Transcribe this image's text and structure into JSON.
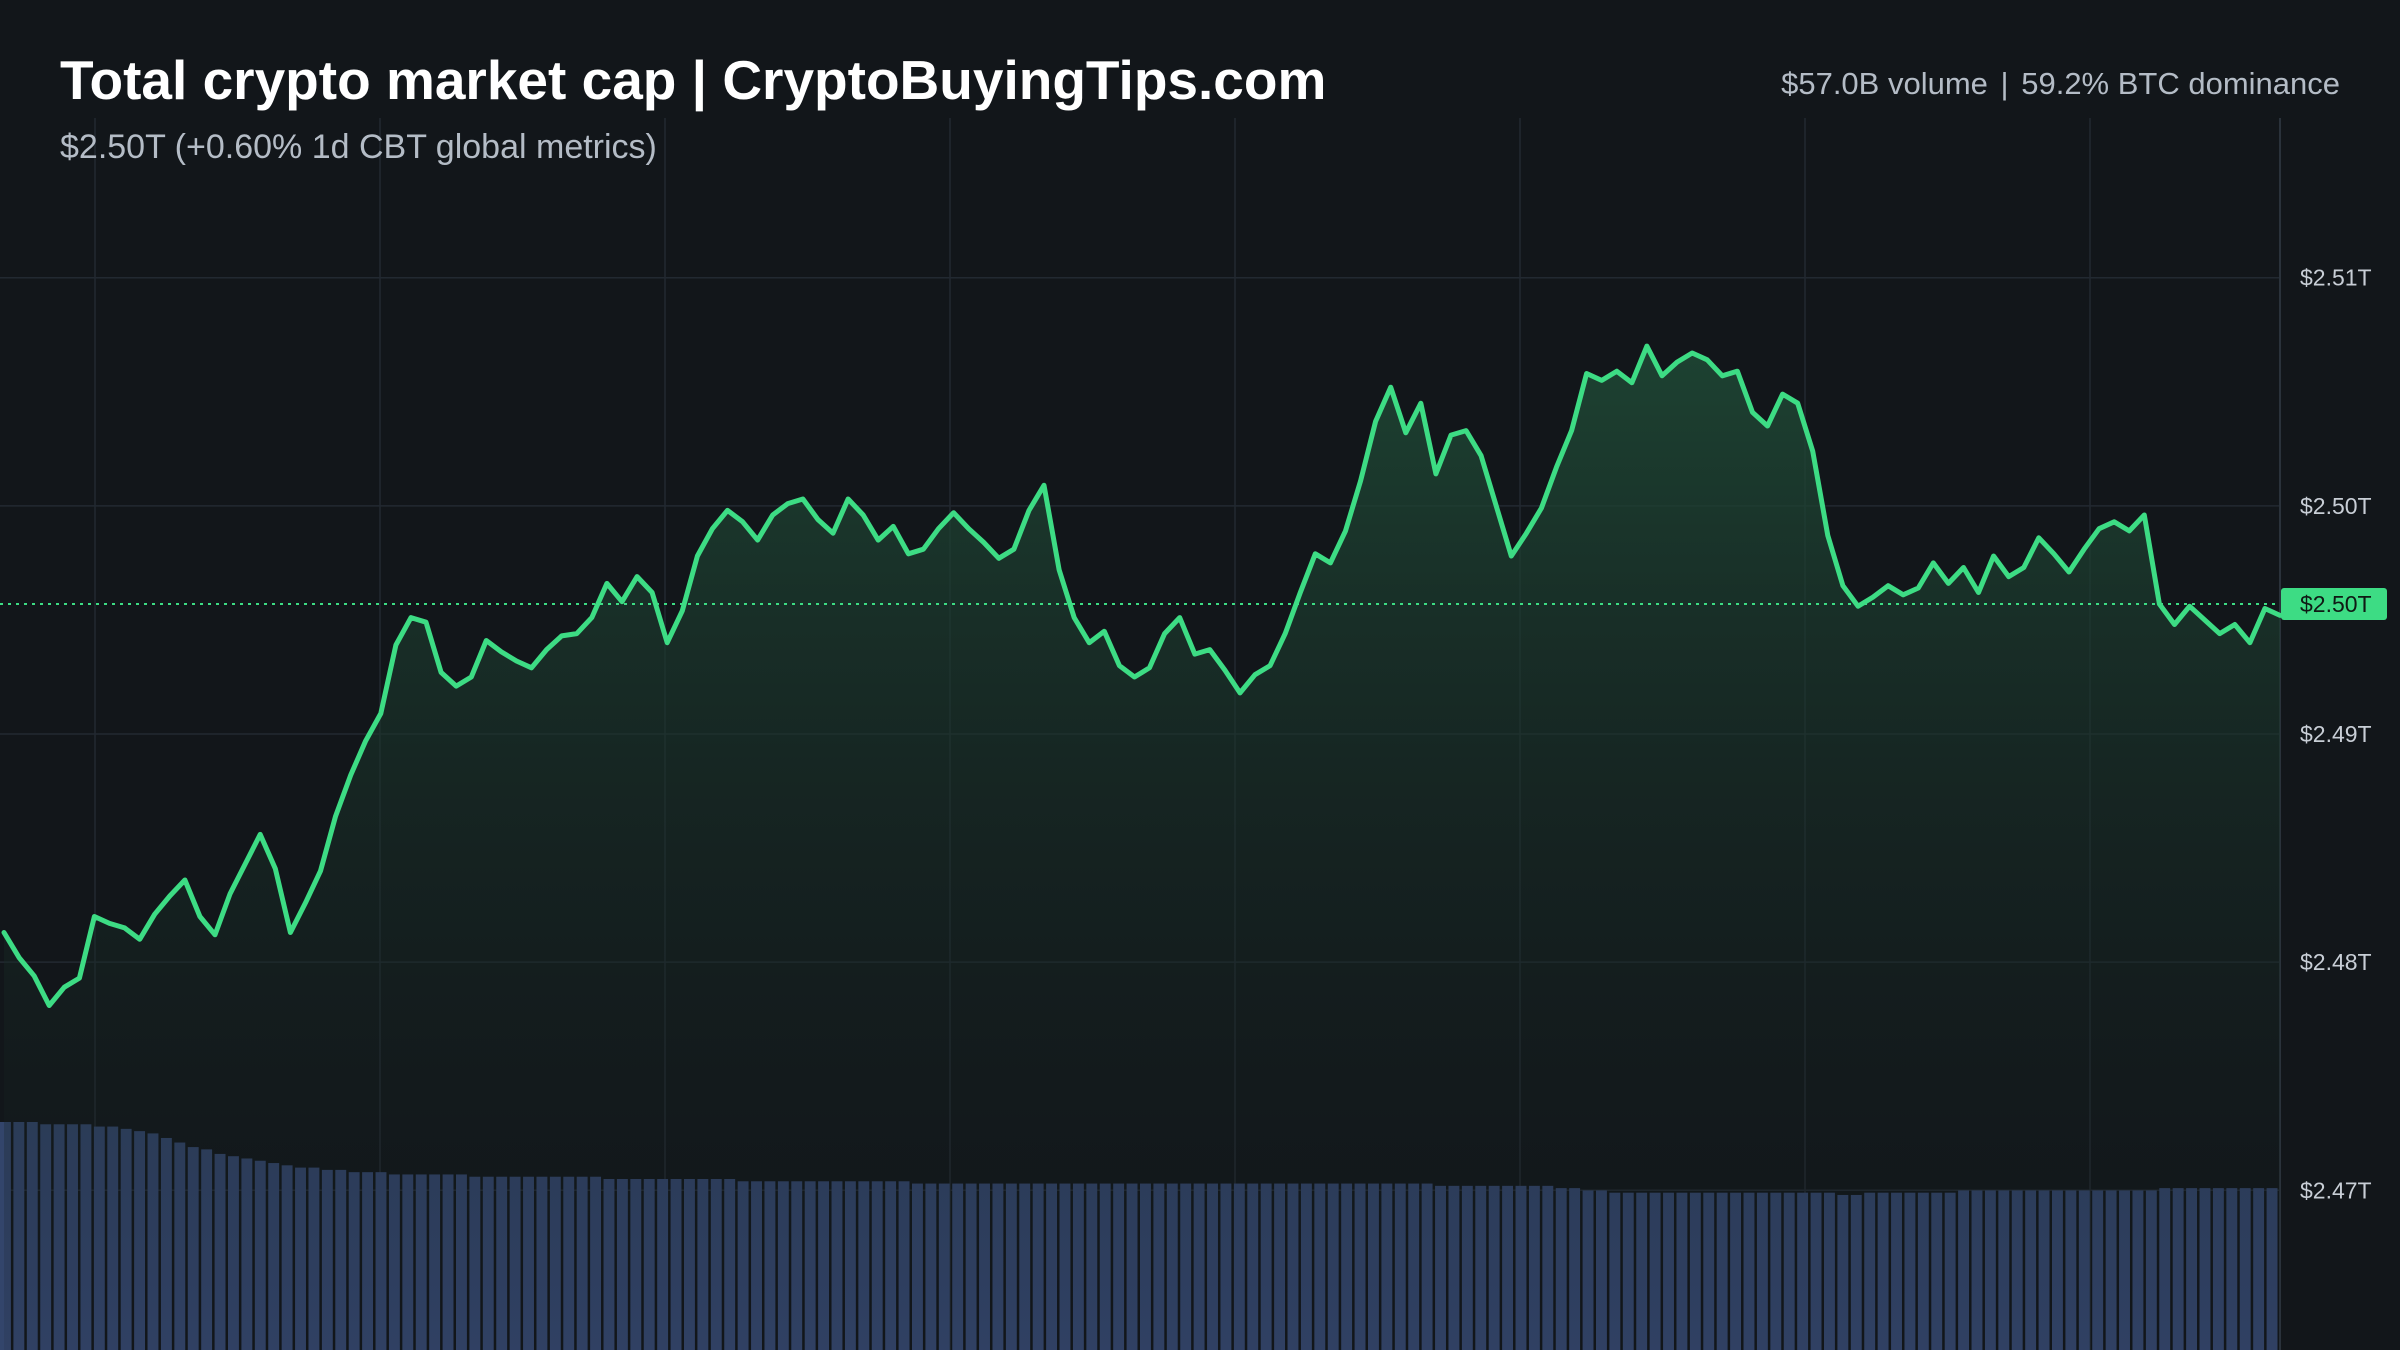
{
  "header": {
    "title": "Total crypto market cap | CryptoBuyingTips.com",
    "subtitle": "$2.50T (+0.60% 1d CBT global metrics)",
    "volume": "$57.0B volume",
    "separator": "|",
    "dominance": "59.2% BTC dominance"
  },
  "colors": {
    "background": "#12161a",
    "line": "#3ddc84",
    "area_top": "#1f4a36",
    "volume_bars": "#33456b",
    "grid": "#222931",
    "axis_text": "#c8ced6",
    "current_tag_bg": "#3ddc84",
    "current_tag_text": "#0f1a14"
  },
  "chart_data": {
    "type": "area",
    "title": "Total crypto market cap | CryptoBuyingTips.com",
    "y_unit": "USD trillions",
    "ylim": [
      2.463,
      2.517
    ],
    "y_ticks": [
      {
        "value": 2.51,
        "label": "$2.51T"
      },
      {
        "value": 2.5,
        "label": "$2.50T"
      },
      {
        "value": 2.49,
        "label": "$2.49T"
      },
      {
        "value": 2.48,
        "label": "$2.48T"
      },
      {
        "value": 2.47,
        "label": "$2.47T"
      }
    ],
    "current_value": {
      "value": 2.4957,
      "label": "$2.50T"
    },
    "grid": true,
    "series": [
      {
        "type": "line-area",
        "values": [
          2.4813,
          2.4802,
          2.4794,
          2.4781,
          2.4789,
          2.4793,
          2.482,
          2.4817,
          2.4815,
          2.481,
          2.4821,
          2.4829,
          2.4836,
          2.482,
          2.4812,
          2.483,
          2.4843,
          2.4856,
          2.4841,
          2.4813,
          2.4826,
          2.484,
          2.4864,
          2.4882,
          2.4897,
          2.4909,
          2.4939,
          2.4951,
          2.4949,
          2.4927,
          2.4921,
          2.4925,
          2.4941,
          2.4936,
          2.4932,
          2.4929,
          2.4937,
          2.4943,
          2.4944,
          2.4951,
          2.4966,
          2.4958,
          2.4969,
          2.4962,
          2.494,
          2.4954,
          2.4978,
          2.499,
          2.4998,
          2.4993,
          2.4985,
          2.4996,
          2.5001,
          2.5003,
          2.4994,
          2.4988,
          2.5003,
          2.4996,
          2.4985,
          2.4991,
          2.4979,
          2.4981,
          2.499,
          2.4997,
          2.499,
          2.4984,
          2.4977,
          2.4981,
          2.4998,
          2.5009,
          2.4972,
          2.4951,
          2.494,
          2.4945,
          2.493,
          2.4925,
          2.4929,
          2.4944,
          2.4951,
          2.4935,
          2.4937,
          2.4928,
          2.4918,
          2.4926,
          2.493,
          2.4944,
          2.4962,
          2.4979,
          2.4975,
          2.4989,
          2.5011,
          2.5037,
          2.5052,
          2.5032,
          2.5045,
          2.5014,
          2.5031,
          2.5033,
          2.5022,
          2.5,
          2.4978,
          2.4988,
          2.4999,
          2.5017,
          2.5033,
          2.5058,
          2.5055,
          2.5059,
          2.5054,
          2.507,
          2.5057,
          2.5063,
          2.5067,
          2.5064,
          2.5057,
          2.5059,
          2.5041,
          2.5035,
          2.5049,
          2.5045,
          2.5024,
          2.4987,
          2.4965,
          2.4956,
          2.496,
          2.4965,
          2.4961,
          2.4964,
          2.4975,
          2.4966,
          2.4973,
          2.4962,
          2.4978,
          2.4969,
          2.4973,
          2.4986,
          2.4979,
          2.4971,
          2.4981,
          2.499,
          2.4993,
          2.4989,
          2.4996,
          2.4957,
          2.4948,
          2.4956,
          2.495,
          2.4944,
          2.4948,
          2.494,
          2.4955,
          2.4952
        ]
      },
      {
        "type": "volume",
        "values": [
          100,
          100,
          100,
          99,
          99,
          99,
          99,
          98,
          98,
          97,
          96,
          95,
          93,
          91,
          89,
          88,
          86,
          85,
          84,
          83,
          82,
          81,
          80,
          80,
          79,
          79,
          78,
          78,
          78,
          77,
          77,
          77,
          77,
          77,
          77,
          76,
          76,
          76,
          76,
          76,
          76,
          76,
          76,
          76,
          76,
          75,
          75,
          75,
          75,
          75,
          75,
          75,
          75,
          75,
          75,
          74,
          74,
          74,
          74,
          74,
          74,
          74,
          74,
          74,
          74,
          74,
          74,
          74,
          73,
          73,
          73,
          73,
          73,
          73,
          73,
          73,
          73,
          73,
          73,
          73,
          73,
          73,
          73,
          73,
          73,
          73,
          73,
          73,
          73,
          73,
          73,
          73,
          73,
          73,
          73,
          73,
          73,
          73,
          73,
          73,
          73,
          73,
          73,
          73,
          73,
          73,
          73,
          72,
          72,
          72,
          72,
          72,
          72,
          72,
          72,
          72,
          71,
          71,
          70,
          70,
          69,
          69,
          69,
          69,
          69,
          69,
          69,
          69,
          69,
          69,
          69,
          69,
          69,
          69,
          69,
          69,
          69,
          68,
          68,
          69,
          69,
          69,
          69,
          69,
          69,
          69,
          70,
          70,
          70,
          70,
          70,
          70,
          70,
          70,
          70,
          70,
          70,
          70,
          70,
          70,
          70,
          71,
          71,
          71,
          71,
          71,
          71,
          71,
          71,
          71
        ]
      }
    ]
  }
}
